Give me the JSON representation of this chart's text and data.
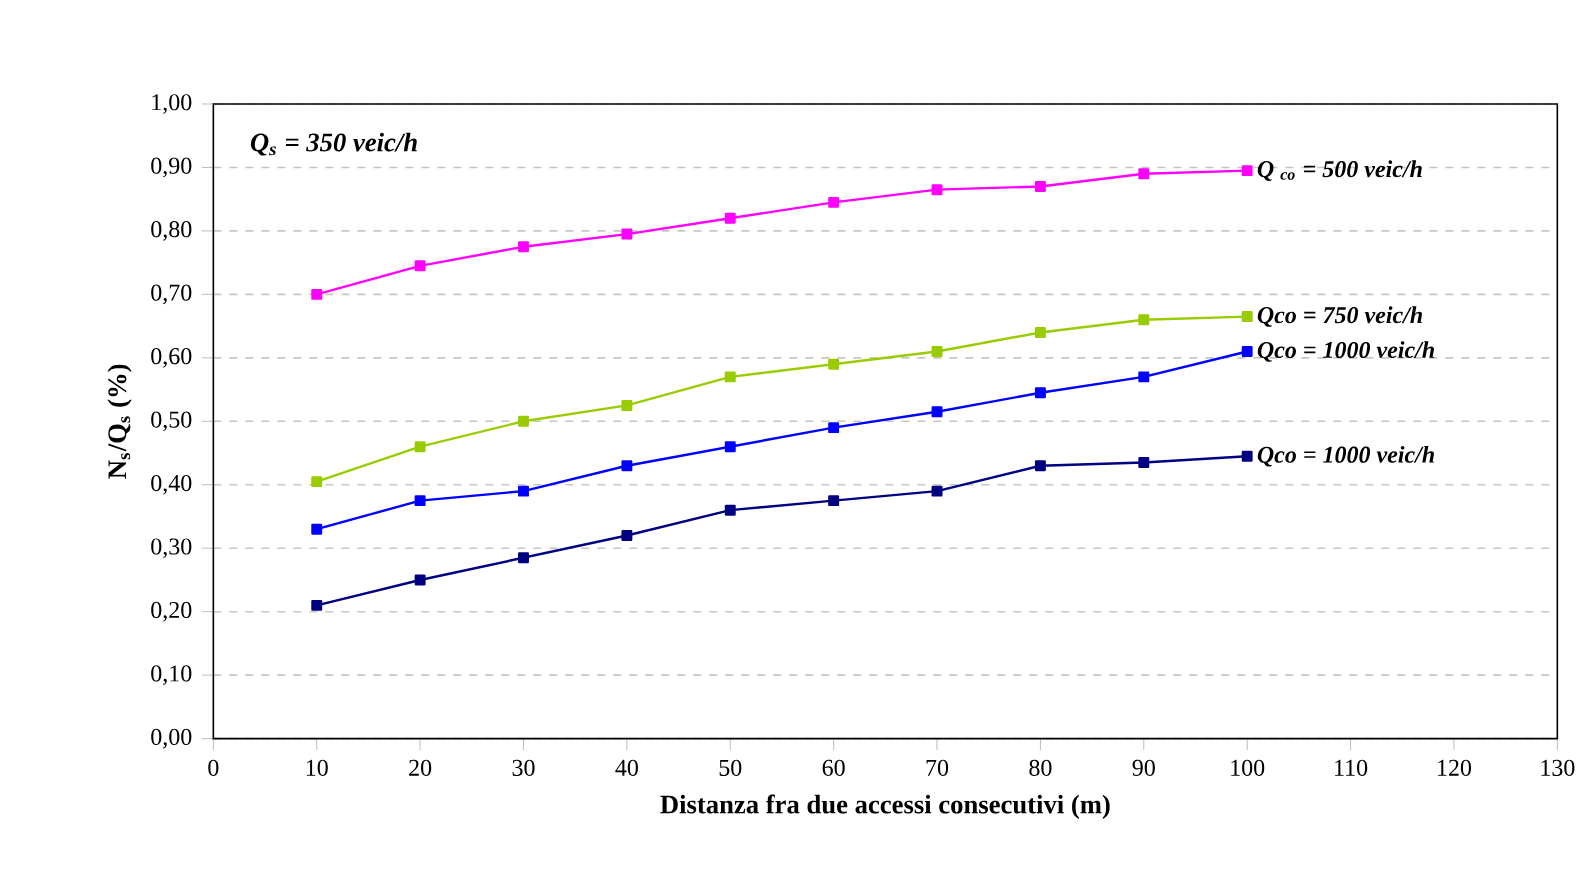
{
  "chart_data": {
    "type": "line",
    "xlabel": "Distanza fra due accessi consecutivi (m)",
    "ylabel": "N$_{s}$/Q$_{s}$ (%)",
    "x": [
      10,
      20,
      30,
      40,
      50,
      60,
      70,
      80,
      90,
      100
    ],
    "series": [
      {
        "name": "Q $_{co}$ = 500 veic/h",
        "color": "#ff00ff",
        "values": [
          0.7,
          0.745,
          0.775,
          0.795,
          0.82,
          0.845,
          0.865,
          0.87,
          0.89,
          0.895
        ]
      },
      {
        "name": "Qco = 750 veic/h",
        "color": "#99cc00",
        "values": [
          0.405,
          0.46,
          0.5,
          0.525,
          0.57,
          0.59,
          0.61,
          0.64,
          0.66,
          0.665
        ]
      },
      {
        "name": "Qco = 1000 veic/h",
        "color": "#0000ff",
        "values": [
          0.33,
          0.375,
          0.39,
          0.43,
          0.46,
          0.49,
          0.515,
          0.545,
          0.57,
          0.61
        ]
      },
      {
        "name": "Qco = 1000 veic/h",
        "color": "#000080",
        "values": [
          0.21,
          0.25,
          0.285,
          0.32,
          0.36,
          0.375,
          0.39,
          0.43,
          0.435,
          0.445
        ]
      }
    ],
    "annotations": [
      "Q$_{s}$ = 350 veic/h"
    ],
    "xlim": [
      0,
      130
    ],
    "xticks": [
      0,
      10,
      20,
      30,
      40,
      50,
      60,
      70,
      80,
      90,
      100,
      110,
      120,
      130
    ],
    "ylim": [
      0,
      1
    ],
    "yticks": [
      {
        "value": 0,
        "label": "0,00"
      },
      {
        "value": 0.1,
        "label": "0,10"
      },
      {
        "value": 0.2,
        "label": "0,20"
      },
      {
        "value": 0.3,
        "label": "0,30"
      },
      {
        "value": 0.4,
        "label": "0,40"
      },
      {
        "value": 0.5,
        "label": "0,50"
      },
      {
        "value": 0.6,
        "label": "0,60"
      },
      {
        "value": 0.7,
        "label": "0,70"
      },
      {
        "value": 0.8,
        "label": "0,80"
      },
      {
        "value": 0.9,
        "label": "0,90"
      },
      {
        "value": 1,
        "label": "1,00"
      }
    ],
    "grid": "y",
    "marker": "square",
    "line_style": "solid"
  }
}
